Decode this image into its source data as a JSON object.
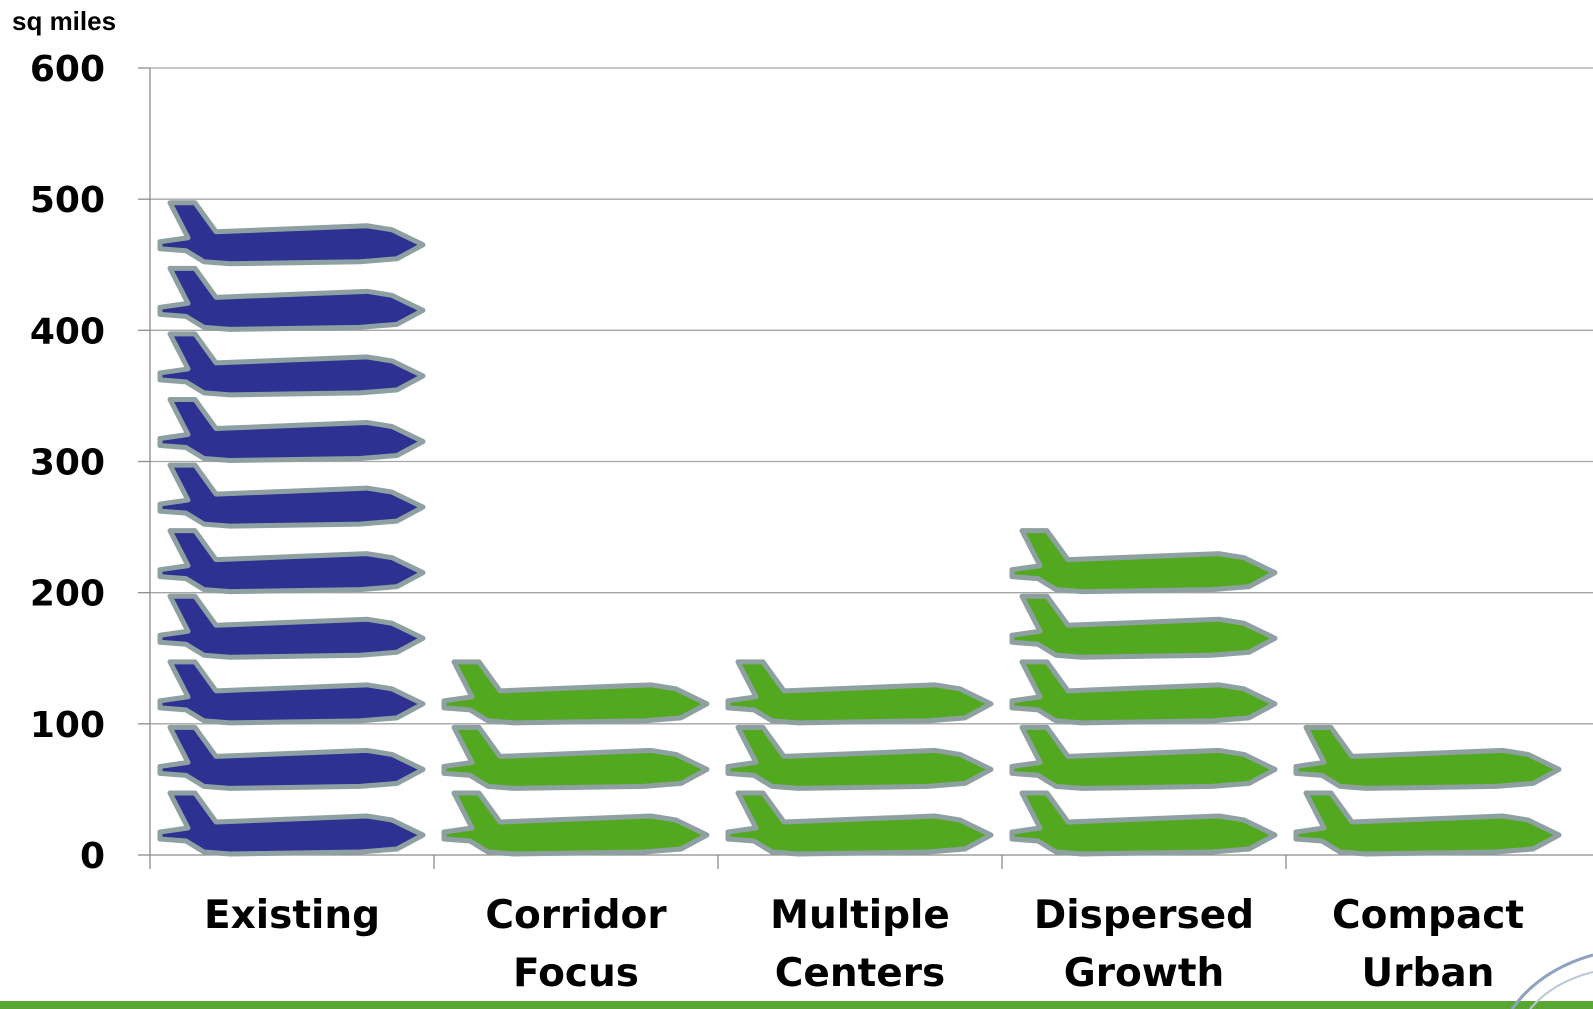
{
  "chart_data": {
    "type": "bar",
    "style": "pictograph",
    "icon": "airplane-icon",
    "unit_per_icon": 50,
    "ylabel": "sq miles",
    "ylim": [
      0,
      600
    ],
    "yticks": [
      0,
      100,
      200,
      300,
      400,
      500,
      600
    ],
    "grid": true,
    "categories": [
      "Existing",
      "Corridor Focus",
      "Multiple Centers",
      "Dispersed Growth",
      "Compact Urban"
    ],
    "category_lines": [
      [
        "Existing"
      ],
      [
        "Corridor",
        "Focus"
      ],
      [
        "Multiple",
        "Centers"
      ],
      [
        "Dispersed",
        "Growth"
      ],
      [
        "Compact",
        "Urban"
      ]
    ],
    "values": [
      500,
      150,
      150,
      250,
      100
    ],
    "colors": [
      "#2e3192",
      "#52a920",
      "#52a920",
      "#52a920",
      "#52a920"
    ],
    "outline_color": "#8ea0a2"
  },
  "footer": {
    "band_color": "#5aa632"
  }
}
